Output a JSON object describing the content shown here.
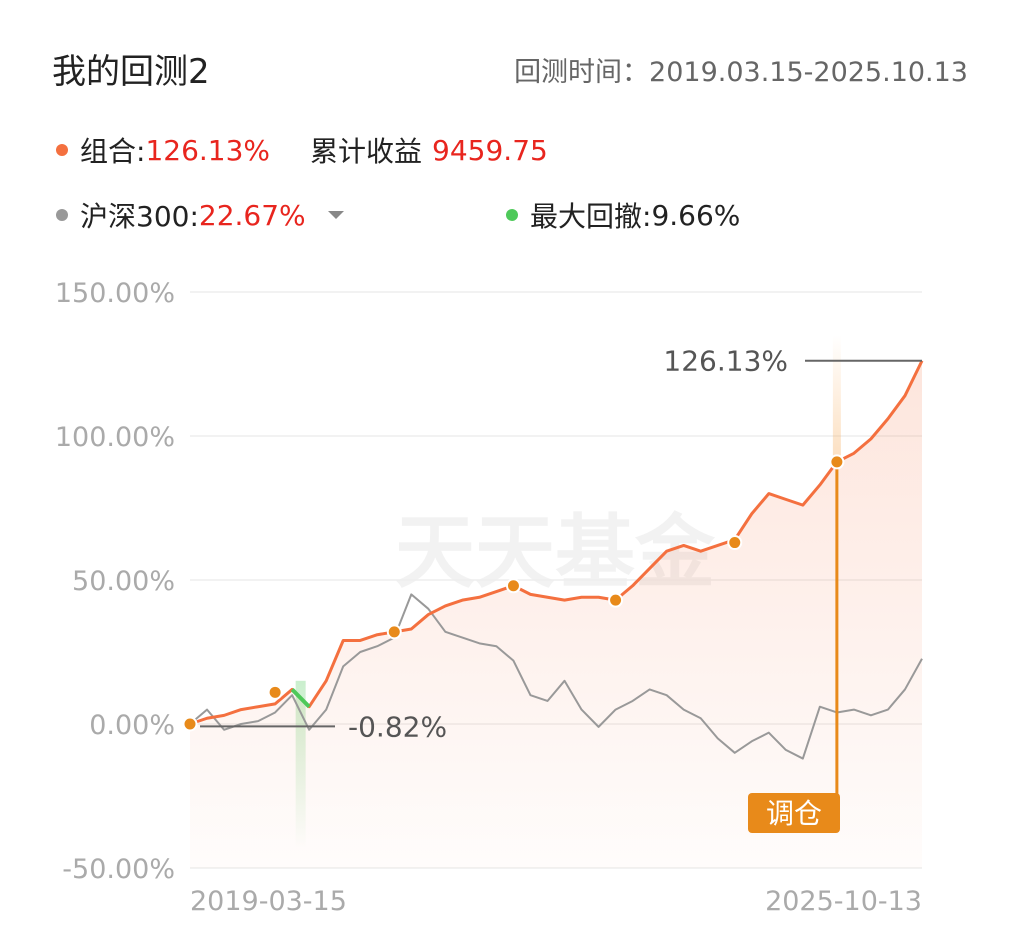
{
  "header": {
    "title": "我的回测2",
    "period": "回测时间：2019.03.15-2025.10.13"
  },
  "stats": {
    "portfolio_label": "组合:",
    "portfolio_return": "126.13%",
    "profit_label": "累计收益",
    "profit": "9459.75",
    "benchmark_label": "沪深300:",
    "benchmark_return": "22.67%",
    "drawdown_label": "最大回撤:",
    "drawdown": "9.66%"
  },
  "watermark": "天天基金",
  "chart_data": {
    "type": "line",
    "categories": [
      "2019-03-15",
      null,
      null,
      null,
      null,
      null,
      null,
      null,
      null,
      null,
      null,
      null,
      null,
      null,
      null,
      null,
      null,
      null,
      null,
      null,
      null,
      null,
      null,
      null,
      null,
      null,
      null,
      null,
      null,
      null,
      null,
      null,
      null,
      null,
      null,
      null,
      null,
      null,
      null,
      null,
      null,
      null,
      null,
      "2025-10-13"
    ],
    "series": [
      {
        "name": "组合",
        "color": "#f4703f",
        "values": [
          0,
          2,
          3,
          5,
          6,
          7,
          12,
          6,
          15,
          29,
          29,
          31,
          32,
          33,
          38,
          41,
          43,
          44,
          46,
          48,
          45,
          44,
          43,
          44,
          44,
          43,
          48,
          54,
          60,
          62,
          60,
          62,
          64,
          73,
          80,
          78,
          76,
          83,
          91,
          94,
          99,
          106,
          114,
          126.13
        ]
      },
      {
        "name": "沪深300",
        "color": "#999999",
        "values": [
          0,
          5,
          -2,
          0,
          1,
          4,
          10,
          -2,
          5,
          20,
          25,
          27,
          30,
          45,
          40,
          32,
          30,
          28,
          27,
          22,
          10,
          8,
          15,
          5,
          -1,
          5,
          8,
          12,
          10,
          5,
          2,
          -5,
          -10,
          -6,
          -3,
          -9,
          -12,
          6,
          4,
          5,
          3,
          5,
          12,
          22.67
        ]
      }
    ],
    "rebalances": {
      "label": "调仓",
      "x": [
        0,
        5,
        12,
        19,
        25,
        32,
        38
      ],
      "values": [
        0,
        11,
        32,
        48,
        43,
        63,
        91
      ],
      "color": "#e88a1a"
    },
    "annotations": [
      {
        "text": "126.13%",
        "value": 126.13
      },
      {
        "text": "-0.82%",
        "value": -0.82
      }
    ],
    "ylim": [
      -50,
      150
    ],
    "yticks": [
      {
        "value": -50,
        "label": "-50.00%"
      },
      {
        "value": 0,
        "label": "0.00%"
      },
      {
        "value": 50,
        "label": "50.00%"
      },
      {
        "value": 100,
        "label": "100.00%"
      },
      {
        "value": 150,
        "label": "150.00%"
      }
    ],
    "grid": true
  }
}
